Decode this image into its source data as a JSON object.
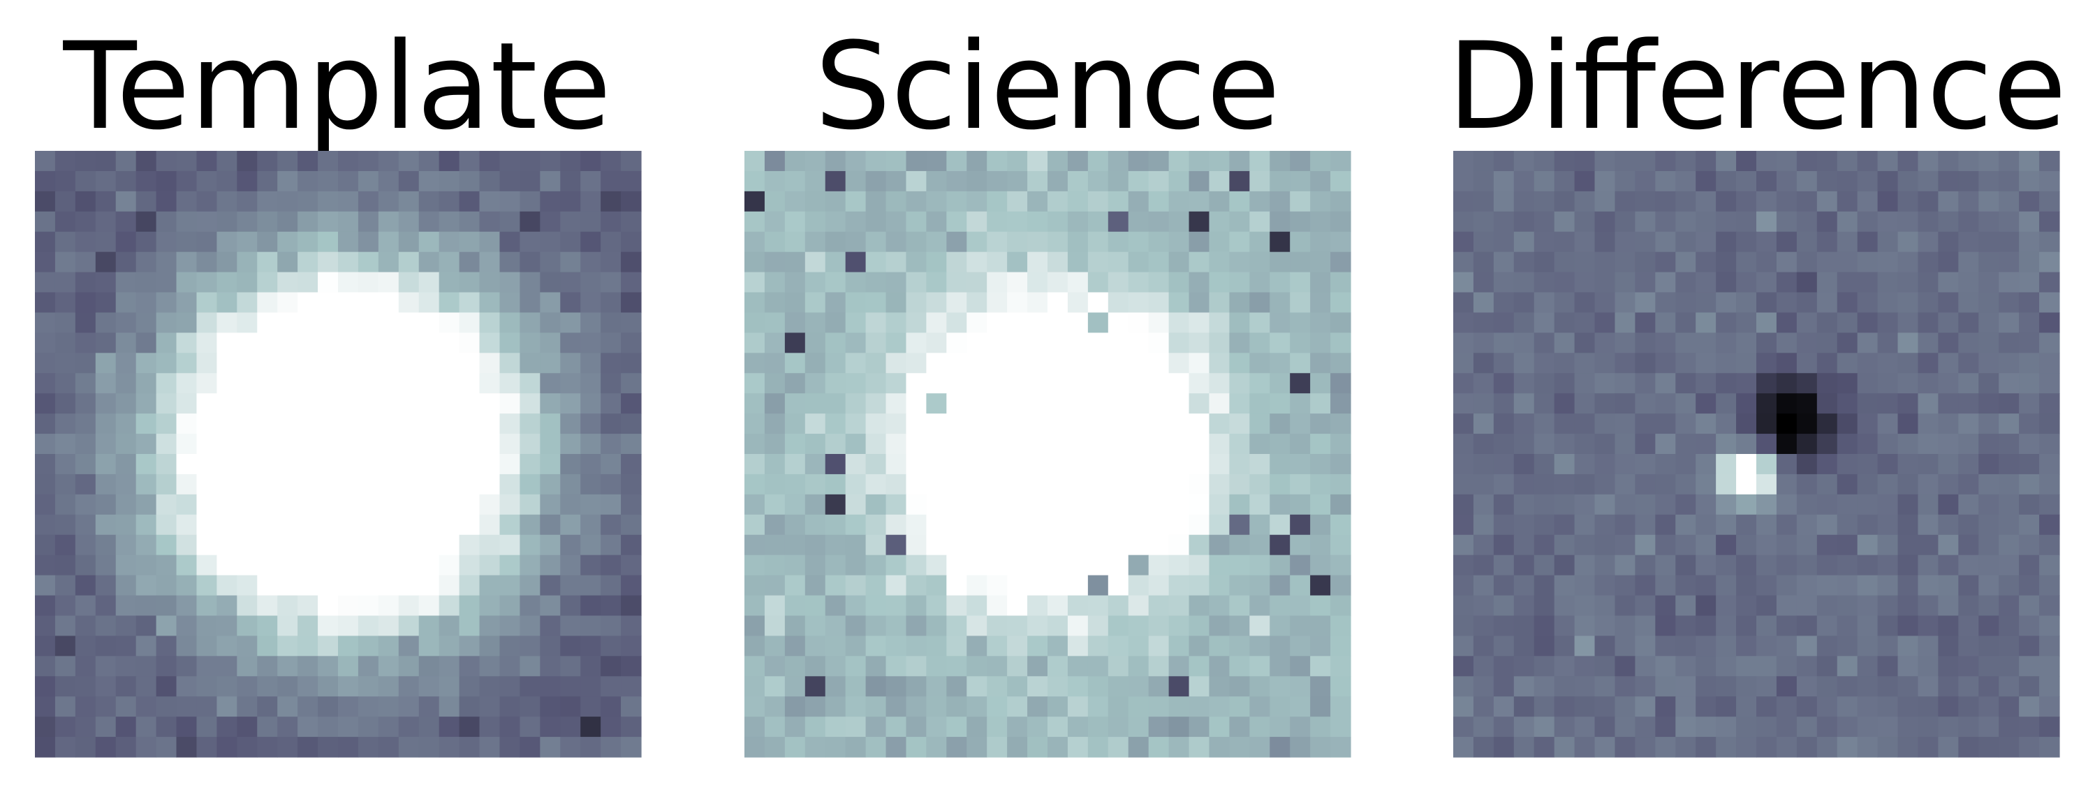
{
  "panels": [
    {
      "title": "Template"
    },
    {
      "title": "Science"
    },
    {
      "title": "Difference"
    }
  ]
}
